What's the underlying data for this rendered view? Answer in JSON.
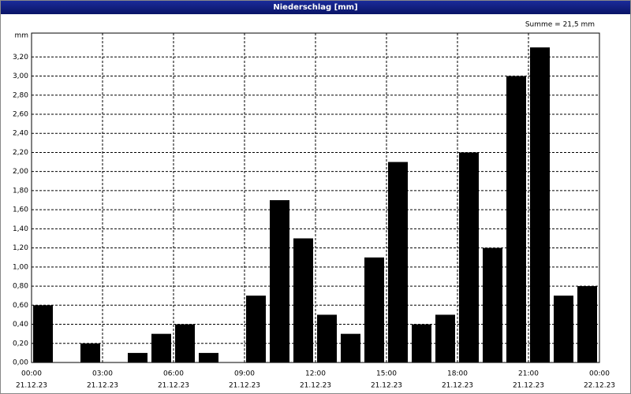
{
  "chart_data": {
    "type": "bar",
    "title": "Niederschlag [mm]",
    "y_unit": "mm",
    "annotation": "Summe = 21,5 mm",
    "x": [
      0,
      1,
      2,
      3,
      4,
      5,
      6,
      7,
      8,
      9,
      10,
      11,
      12,
      13,
      14,
      15,
      16,
      17,
      18,
      19,
      20,
      21,
      22,
      23
    ],
    "values": [
      0.6,
      0,
      0.2,
      0,
      0.1,
      0.3,
      0.4,
      0.1,
      0,
      0.7,
      1.7,
      1.3,
      0.5,
      0.3,
      1.1,
      2.1,
      0.4,
      0.5,
      2.2,
      1.2,
      3.0,
      3.3,
      0.7,
      0.8
    ],
    "color": "#000000",
    "xlim": [
      0,
      24
    ],
    "xticks": [
      {
        "value": 0,
        "label": "00:00"
      },
      {
        "value": 3,
        "label": "03:00"
      },
      {
        "value": 6,
        "label": "06:00"
      },
      {
        "value": 9,
        "label": "09:00"
      },
      {
        "value": 12,
        "label": "12:00"
      },
      {
        "value": 15,
        "label": "15:00"
      },
      {
        "value": 18,
        "label": "18:00"
      },
      {
        "value": 21,
        "label": "21:00"
      },
      {
        "value": 24,
        "label": "00:00"
      }
    ],
    "xtick_dates": [
      "21.12.23",
      "21.12.23",
      "21.12.23",
      "21.12.23",
      "21.12.23",
      "21.12.23",
      "21.12.23",
      "21.12.23",
      "22.12.23"
    ],
    "ylim": [
      0,
      3.45
    ],
    "yticks": [
      {
        "value": 0,
        "label": "0,00"
      },
      {
        "value": 0.2,
        "label": "0,20"
      },
      {
        "value": 0.4,
        "label": "0,40"
      },
      {
        "value": 0.6,
        "label": "0,60"
      },
      {
        "value": 0.8,
        "label": "0,80"
      },
      {
        "value": 1.0,
        "label": "1,00"
      },
      {
        "value": 1.2,
        "label": "1,20"
      },
      {
        "value": 1.4,
        "label": "1,40"
      },
      {
        "value": 1.6,
        "label": "1,60"
      },
      {
        "value": 1.8,
        "label": "1,80"
      },
      {
        "value": 2.0,
        "label": "2,00"
      },
      {
        "value": 2.2,
        "label": "2,20"
      },
      {
        "value": 2.4,
        "label": "2,40"
      },
      {
        "value": 2.6,
        "label": "2,60"
      },
      {
        "value": 2.8,
        "label": "2,80"
      },
      {
        "value": 3.0,
        "label": "3,00"
      },
      {
        "value": 3.2,
        "label": "3,20"
      }
    ],
    "grid": true
  }
}
